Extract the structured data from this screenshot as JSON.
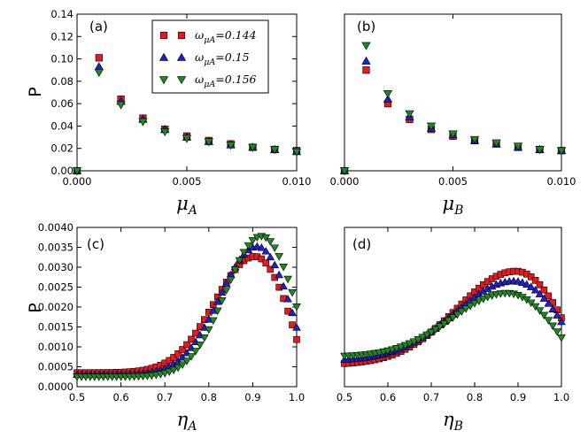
{
  "chart_data": {
    "type": "scatter",
    "marker_colors": {
      "square": "#e8191e",
      "triangle_up": "#1f1fd6",
      "triangle_down": "#1e8a1e"
    },
    "legend": {
      "placement": "top-right of panel (a)",
      "entries": [
        {
          "sym": "ω",
          "sub": "μA",
          "eq": "=0.144",
          "marker": "square",
          "color": "#e8191e"
        },
        {
          "sym": "ω",
          "sub": "μA",
          "eq": "=0.15",
          "marker": "triangle_up",
          "color": "#1f1fd6"
        },
        {
          "sym": "ω",
          "sub": "μA",
          "eq": "=0.156",
          "marker": "triangle_down",
          "color": "#1e8a1e"
        }
      ]
    },
    "panels": [
      {
        "label": "(a)",
        "xlabel": {
          "main": "μ",
          "sub": "A"
        },
        "ylabel": "P",
        "xlim": [
          0,
          0.01
        ],
        "ylim": [
          0,
          0.14
        ],
        "xticks": [
          0,
          0.005,
          0.01
        ],
        "xtick_labels": [
          "0.000",
          "0.005",
          "0.010"
        ],
        "yticks": [
          0,
          0.02,
          0.04,
          0.06,
          0.08,
          0.1,
          0.12,
          0.14
        ],
        "ytick_labels": [
          "0.00",
          "0.02",
          "0.04",
          "0.06",
          "0.08",
          "0.10",
          "0.12",
          "0.14"
        ],
        "x": [
          0,
          0.001,
          0.002,
          0.003,
          0.004,
          0.005,
          0.006,
          0.007,
          0.008,
          0.009,
          0.01
        ],
        "series": [
          {
            "name": "ωμA=0.144",
            "marker": "square",
            "values": [
              0,
              0.101,
              0.064,
              0.047,
              0.037,
              0.031,
              0.027,
              0.024,
              0.021,
              0.019,
              0.018
            ]
          },
          {
            "name": "ωμA=0.15",
            "marker": "triangle_up",
            "values": [
              0,
              0.093,
              0.062,
              0.046,
              0.037,
              0.03,
              0.026,
              0.023,
              0.021,
              0.019,
              0.017
            ]
          },
          {
            "name": "ωμA=0.156",
            "marker": "triangle_down",
            "values": [
              0,
              0.088,
              0.059,
              0.044,
              0.035,
              0.029,
              0.026,
              0.023,
              0.021,
              0.019,
              0.017
            ]
          }
        ]
      },
      {
        "label": "(b)",
        "xlabel": {
          "main": "μ",
          "sub": "B"
        },
        "ylabel": "",
        "xlim": [
          0,
          0.01
        ],
        "ylim": [
          0,
          0.14
        ],
        "xticks": [
          0,
          0.005,
          0.01
        ],
        "xtick_labels": [
          "0.000",
          "0.005",
          "0.010"
        ],
        "yticks": [],
        "ytick_labels": [],
        "x": [
          0,
          0.001,
          0.002,
          0.003,
          0.004,
          0.005,
          0.006,
          0.007,
          0.008,
          0.009,
          0.01
        ],
        "series": [
          {
            "name": "ωμA=0.144",
            "marker": "square",
            "values": [
              0,
              0.09,
              0.06,
              0.046,
              0.037,
              0.031,
              0.027,
              0.024,
              0.021,
              0.019,
              0.018
            ]
          },
          {
            "name": "ωμA=0.15",
            "marker": "triangle_up",
            "values": [
              0,
              0.098,
              0.064,
              0.048,
              0.038,
              0.032,
              0.027,
              0.024,
              0.021,
              0.019,
              0.018
            ]
          },
          {
            "name": "ωμA=0.156",
            "marker": "triangle_down",
            "values": [
              0,
              0.112,
              0.069,
              0.051,
              0.04,
              0.033,
              0.028,
              0.025,
              0.022,
              0.019,
              0.018
            ]
          }
        ]
      },
      {
        "label": "(c)",
        "xlabel": {
          "main": "η",
          "sub": "A"
        },
        "ylabel": "P",
        "xlim": [
          0.5,
          1.0
        ],
        "ylim": [
          0,
          0.004
        ],
        "xticks": [
          0.5,
          0.6,
          0.7,
          0.8,
          0.9,
          1.0
        ],
        "xtick_labels": [
          "0.5",
          "0.6",
          "0.7",
          "0.8",
          "0.9",
          "1.0"
        ],
        "yticks": [
          0,
          0.0005,
          0.001,
          0.0015,
          0.002,
          0.0025,
          0.003,
          0.0035,
          0.004
        ],
        "ytick_labels": [
          "0.0000",
          "0.0005",
          "0.0010",
          "0.0015",
          "0.0020",
          "0.0025",
          "0.0030",
          "0.0035",
          "0.0040"
        ],
        "x_range": [
          0.5,
          1.0,
          0.01
        ],
        "series": [
          {
            "name": "ωμA=0.144",
            "marker": "square",
            "curve": {
              "base": 0.00035,
              "amp": 0.00292,
              "center": 0.905,
              "width": 0.13,
              "drop": 0.0068,
              "drop_width": 0.07
            }
          },
          {
            "name": "ωμA=0.15",
            "marker": "triangle_up",
            "curve": {
              "base": 0.0003,
              "amp": 0.00322,
              "center": 0.91,
              "width": 0.12,
              "drop": 0.006,
              "drop_width": 0.075
            }
          },
          {
            "name": "ωμA=0.156",
            "marker": "triangle_down",
            "curve": {
              "base": 0.00025,
              "amp": 0.00353,
              "center": 0.92,
              "width": 0.115,
              "drop": 0.0052,
              "drop_width": 0.08
            }
          }
        ]
      },
      {
        "label": "(d)",
        "xlabel": {
          "main": "η",
          "sub": "B"
        },
        "ylabel": "",
        "xlim": [
          0.5,
          1.0
        ],
        "ylim": [
          0,
          0.004
        ],
        "xticks": [
          0.5,
          0.6,
          0.7,
          0.8,
          0.9,
          1.0
        ],
        "xtick_labels": [
          "0.5",
          "0.6",
          "0.7",
          "0.8",
          "0.9",
          "1.0"
        ],
        "yticks": [],
        "ytick_labels": [],
        "x_range": [
          0.5,
          1.0,
          0.01
        ],
        "series": [
          {
            "name": "ωμA=0.144",
            "marker": "square",
            "curve": {
              "base": 0.00055,
              "amp": 0.00235,
              "center": 0.895,
              "width": 0.19,
              "drop": 0.0035,
              "drop_width": 0.07
            }
          },
          {
            "name": "ωμA=0.15",
            "marker": "triangle_up",
            "curve": {
              "base": 0.00065,
              "amp": 0.002,
              "center": 0.89,
              "width": 0.19,
              "drop": 0.0028,
              "drop_width": 0.075
            }
          },
          {
            "name": "ωμA=0.156",
            "marker": "triangle_down",
            "curve": {
              "base": 0.00075,
              "amp": 0.0016,
              "center": 0.875,
              "width": 0.18,
              "drop": 0.0026,
              "drop_width": 0.08
            }
          }
        ]
      }
    ]
  }
}
